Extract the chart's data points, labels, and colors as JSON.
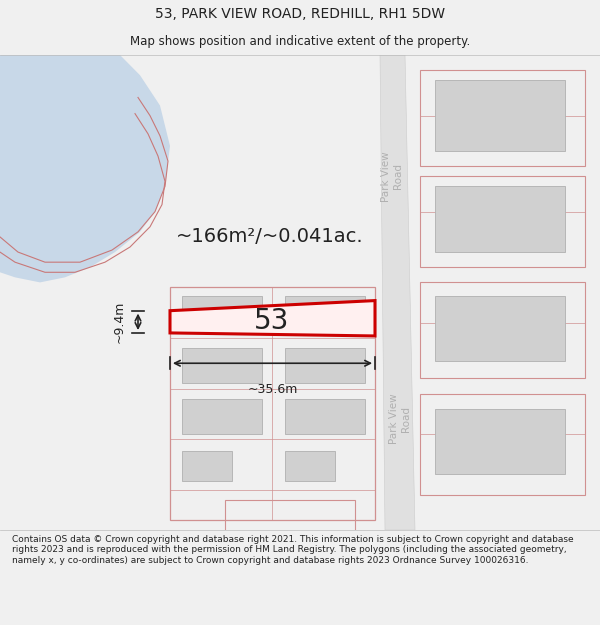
{
  "title": "53, PARK VIEW ROAD, REDHILL, RH1 5DW",
  "subtitle": "Map shows position and indicative extent of the property.",
  "footer": "Contains OS data © Crown copyright and database right 2021. This information is subject to Crown copyright and database rights 2023 and is reproduced with the permission of HM Land Registry. The polygons (including the associated geometry, namely x, y co-ordinates) are subject to Crown copyright and database rights 2023 Ordnance Survey 100026316.",
  "area_label": "~166m²/~0.041ac.",
  "width_label": "~35.6m",
  "height_label": "~9.4m",
  "plot_number": "53",
  "bg_color": "#f0f0f0",
  "map_bg": "#ffffff",
  "water_fill": "#c8d8e8",
  "water_outline": "#c87878",
  "road_fill": "#e0e0e0",
  "road_label_color": "#b0b0b0",
  "pink_line": "#d09090",
  "red_plot": "#cc0000",
  "building_fill": "#d0d0d0",
  "building_stroke": "#b0b0b0",
  "text_dark": "#222222"
}
